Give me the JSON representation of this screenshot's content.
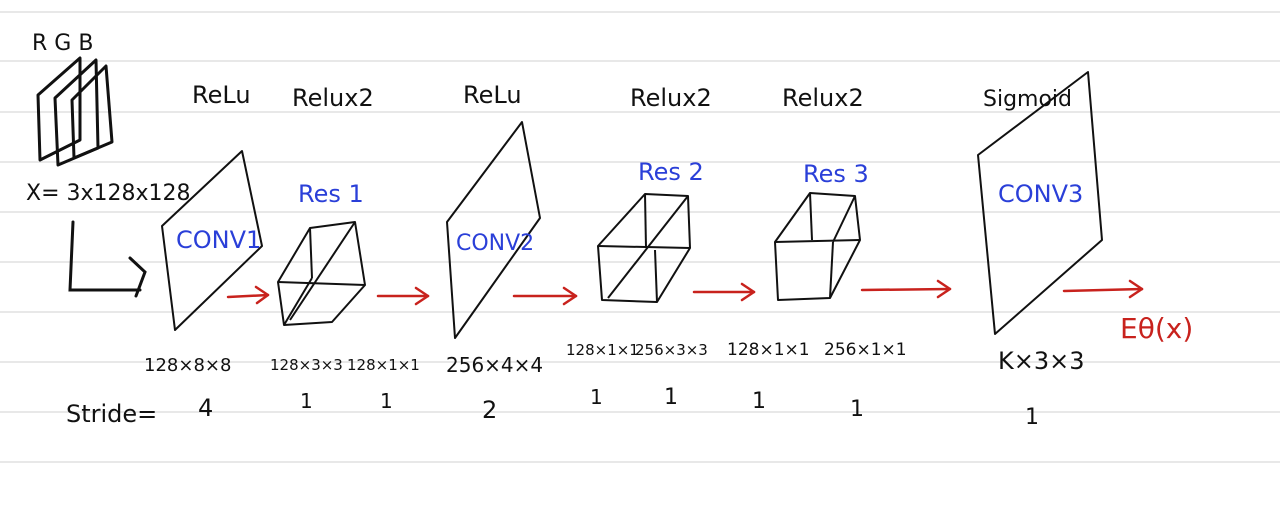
{
  "colors": {
    "ink": "#111111",
    "blue_ink": "#2a3fd8",
    "red_ink": "#c8221d",
    "ruled_line": "#d9d9d9"
  },
  "input": {
    "channels_label": "R G B",
    "shape_label": "X= 3x128x128"
  },
  "activations": {
    "conv1": "ReLu",
    "res1": "Relux2",
    "conv2": "ReLu",
    "res2": "Relux2",
    "res3": "Relux2",
    "conv3": "Sigmoid"
  },
  "blocks": {
    "conv1": "CONV1",
    "res1": "Res 1",
    "conv2": "CONV2",
    "res2": "Res 2",
    "res3": "Res 3",
    "conv3": "CONV3"
  },
  "output_label": "Eθ(x)",
  "kernel_sizes": {
    "conv1": "128×8×8",
    "res1_a": "128×3×3",
    "res1_b": "128×1×1",
    "conv2": "256×4×4",
    "res2_a": "128×1×1",
    "res2_b": "256×3×3",
    "res3_a": "128×1×1",
    "res3_b": "256×1×1",
    "conv3": "K×3×3"
  },
  "stride": {
    "label": "Stride=",
    "conv1": "4",
    "res1_a": "1",
    "res1_b": "1",
    "conv2": "2",
    "res2_a": "1",
    "res2_b": "1",
    "res3_a": "1",
    "res3_b": "1",
    "conv3": "1"
  }
}
